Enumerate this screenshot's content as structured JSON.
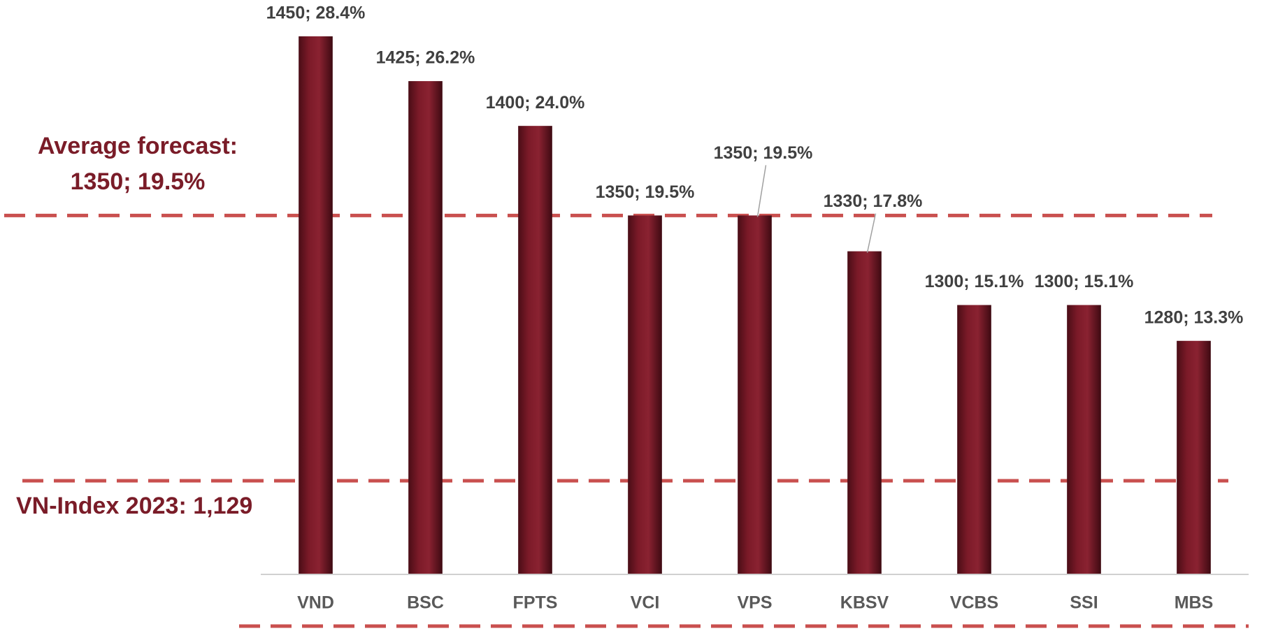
{
  "chart_data": {
    "type": "bar",
    "categories": [
      "VND",
      "BSC",
      "FPTS",
      "VCI",
      "VPS",
      "KBSV",
      "VCBS",
      "SSI",
      "MBS"
    ],
    "values": [
      1450,
      1425,
      1400,
      1350,
      1350,
      1330,
      1300,
      1300,
      1280
    ],
    "value_labels": [
      "1450; 28.4%",
      "1425; 26.2%",
      "1400; 24.0%",
      "1350; 19.5%",
      "1350; 19.5%",
      "1330; 17.8%",
      "1300; 15.1%",
      "1300; 15.1%",
      "1280; 13.3%"
    ],
    "color": "#7b1a28",
    "ylim": [
      1150,
      1450
    ],
    "average": 1350,
    "annotations": [
      "Average forecast:",
      "1350; 19.5%",
      "VN-Index 2023: 1,129"
    ]
  }
}
